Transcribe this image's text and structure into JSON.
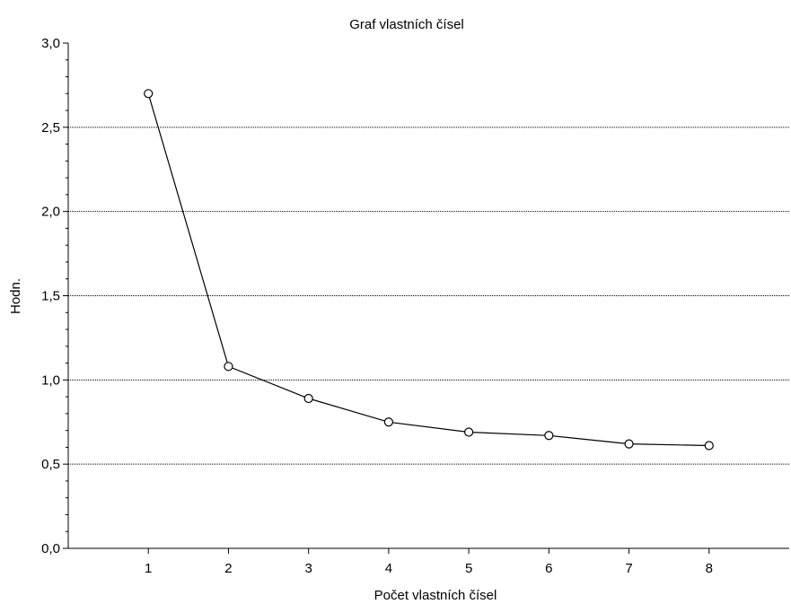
{
  "chart_data": {
    "type": "line",
    "title": "Graf vlastních čísel",
    "xlabel": "Počet vlastních čísel",
    "ylabel": "Hodn.",
    "x": [
      1,
      2,
      3,
      4,
      5,
      6,
      7,
      8
    ],
    "series": [
      {
        "values": [
          2.7,
          1.08,
          0.89,
          0.75,
          0.69,
          0.67,
          0.62,
          0.61
        ]
      }
    ],
    "xlim": [
      0,
      9
    ],
    "ylim": [
      0,
      3
    ],
    "x_ticks": [
      "1",
      "2",
      "3",
      "4",
      "5",
      "6",
      "7",
      "8"
    ],
    "y_ticks": [
      {
        "value": 0.0,
        "label": "0,0"
      },
      {
        "value": 0.5,
        "label": "0,5"
      },
      {
        "value": 1.0,
        "label": "1,0"
      },
      {
        "value": 1.5,
        "label": "1,5"
      },
      {
        "value": 2.0,
        "label": "2,0"
      },
      {
        "value": 2.5,
        "label": "2,5"
      },
      {
        "value": 3.0,
        "label": "3,0"
      }
    ],
    "grid": "horizontal dotted",
    "marker": "open circle",
    "colors": {
      "line": "#000000",
      "marker_fill": "#ffffff",
      "grid": "#000000"
    }
  }
}
